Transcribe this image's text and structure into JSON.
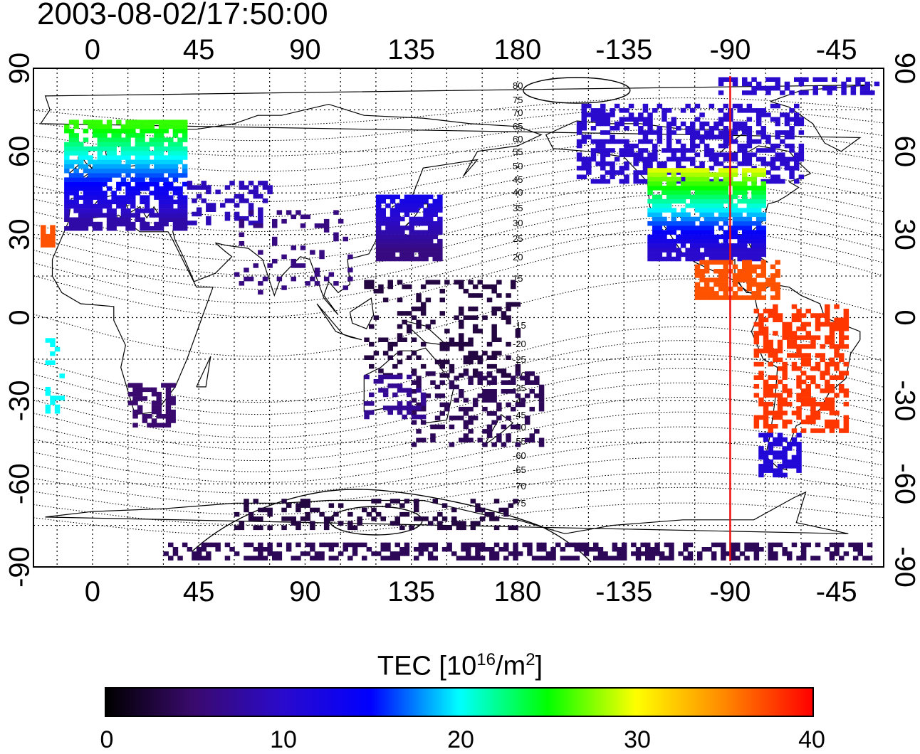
{
  "timestamp": "2003-08-02/17:50:00",
  "map": {
    "top_lon_labels": [
      "0",
      "45",
      "90",
      "135",
      "180",
      "-135",
      "-90",
      "-45"
    ],
    "bottom_lon_labels": [
      "0",
      "45",
      "90",
      "135",
      "180",
      "-135",
      "-90",
      "-45"
    ],
    "lat_labels": [
      "90",
      "60",
      "30",
      "0",
      "-30",
      "-60",
      "-90"
    ],
    "magnetic_lat_labels": [
      "80",
      "75",
      "70",
      "65",
      "60",
      "55",
      "50",
      "45",
      "40",
      "35",
      "30",
      "25",
      "20",
      "15",
      "-15",
      "-20",
      "-25",
      "-30",
      "-35",
      "-40",
      "-45",
      "-50",
      "-55",
      "-60",
      "-65",
      "-70",
      "-75"
    ],
    "marker_longitude": -90,
    "marker_color": "#ee1111"
  },
  "colorbar": {
    "title_prefix": "TEC  [10",
    "title_exp": "16",
    "title_mid": "/m",
    "title_exp2": "2",
    "title_suffix": "]",
    "ticks": [
      "0",
      "10",
      "20",
      "30",
      "40"
    ],
    "range": [
      0,
      40
    ],
    "colors": [
      "#000000",
      "#3a0a6e",
      "#2a0acc",
      "#0000ff",
      "#00ffff",
      "#00ff00",
      "#ffff00",
      "#ff8800",
      "#ff0000"
    ]
  }
}
